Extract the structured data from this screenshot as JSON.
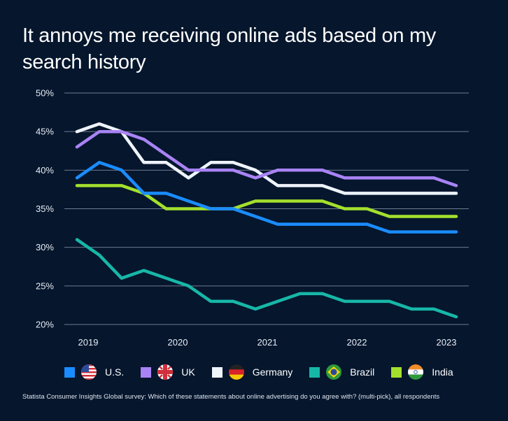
{
  "title": "It annoys me receiving online ads based on my search history",
  "source": "Statista Consumer Insights Global survey: Which of these statements about online advertising do you agree with? (multi-pick), all respondents",
  "colors": {
    "background": "#05162d",
    "grid": "#c9d2de",
    "US": "#1a8cff",
    "UK": "#a983f5",
    "Germany": "#eef4fb",
    "Brazil": "#17b7a7",
    "India": "#a3e02d"
  },
  "legend": [
    {
      "label": "U.S.",
      "flag_icon": "us-flag-icon"
    },
    {
      "label": "UK",
      "flag_icon": "uk-flag-icon"
    },
    {
      "label": "Germany",
      "flag_icon": "germany-flag-icon"
    },
    {
      "label": "Brazil",
      "flag_icon": "brazil-flag-icon"
    },
    {
      "label": "India",
      "flag_icon": "india-flag-icon"
    }
  ],
  "chart_data": {
    "type": "line",
    "title": "It annoys me receiving online ads based on my search history",
    "xlabel": "",
    "ylabel": "",
    "x_ticks": [
      "2019",
      "2020",
      "2021",
      "2022",
      "2023"
    ],
    "y_ticks": [
      "50%",
      "45%",
      "40%",
      "35%",
      "30%",
      "25%",
      "20%"
    ],
    "ylim": [
      20,
      50
    ],
    "grid": "horizontal",
    "legend_position": "bottom",
    "x": [
      "2018 Q4",
      "2019 Q1",
      "2019 Q2",
      "2019 Q3",
      "2019 Q4",
      "2020 Q1",
      "2020 Q2",
      "2020 Q3",
      "2020 Q4",
      "2021 Q1",
      "2021 Q2",
      "2021 Q3",
      "2021 Q4",
      "2022 Q1",
      "2022 Q2",
      "2022 Q3",
      "2022 Q4",
      "2023 Q1"
    ],
    "series": [
      {
        "name": "U.S.",
        "values": [
          39,
          41,
          40,
          37,
          37,
          36,
          35,
          35,
          34,
          33,
          33,
          33,
          33,
          33,
          32,
          32,
          32,
          32
        ]
      },
      {
        "name": "UK",
        "values": [
          43,
          45,
          45,
          44,
          42,
          40,
          40,
          40,
          39,
          40,
          40,
          40,
          39,
          39,
          39,
          39,
          39,
          38
        ]
      },
      {
        "name": "Germany",
        "values": [
          45,
          46,
          45,
          41,
          41,
          39,
          41,
          41,
          40,
          38,
          38,
          38,
          37,
          37,
          37,
          37,
          37,
          37
        ]
      },
      {
        "name": "Brazil",
        "values": [
          31,
          29,
          26,
          27,
          26,
          25,
          23,
          23,
          22,
          23,
          24,
          24,
          23,
          23,
          23,
          22,
          22,
          21
        ]
      },
      {
        "name": "India",
        "values": [
          38,
          38,
          38,
          37,
          35,
          35,
          35,
          35,
          36,
          36,
          36,
          36,
          35,
          35,
          34,
          34,
          34,
          34
        ]
      }
    ]
  }
}
